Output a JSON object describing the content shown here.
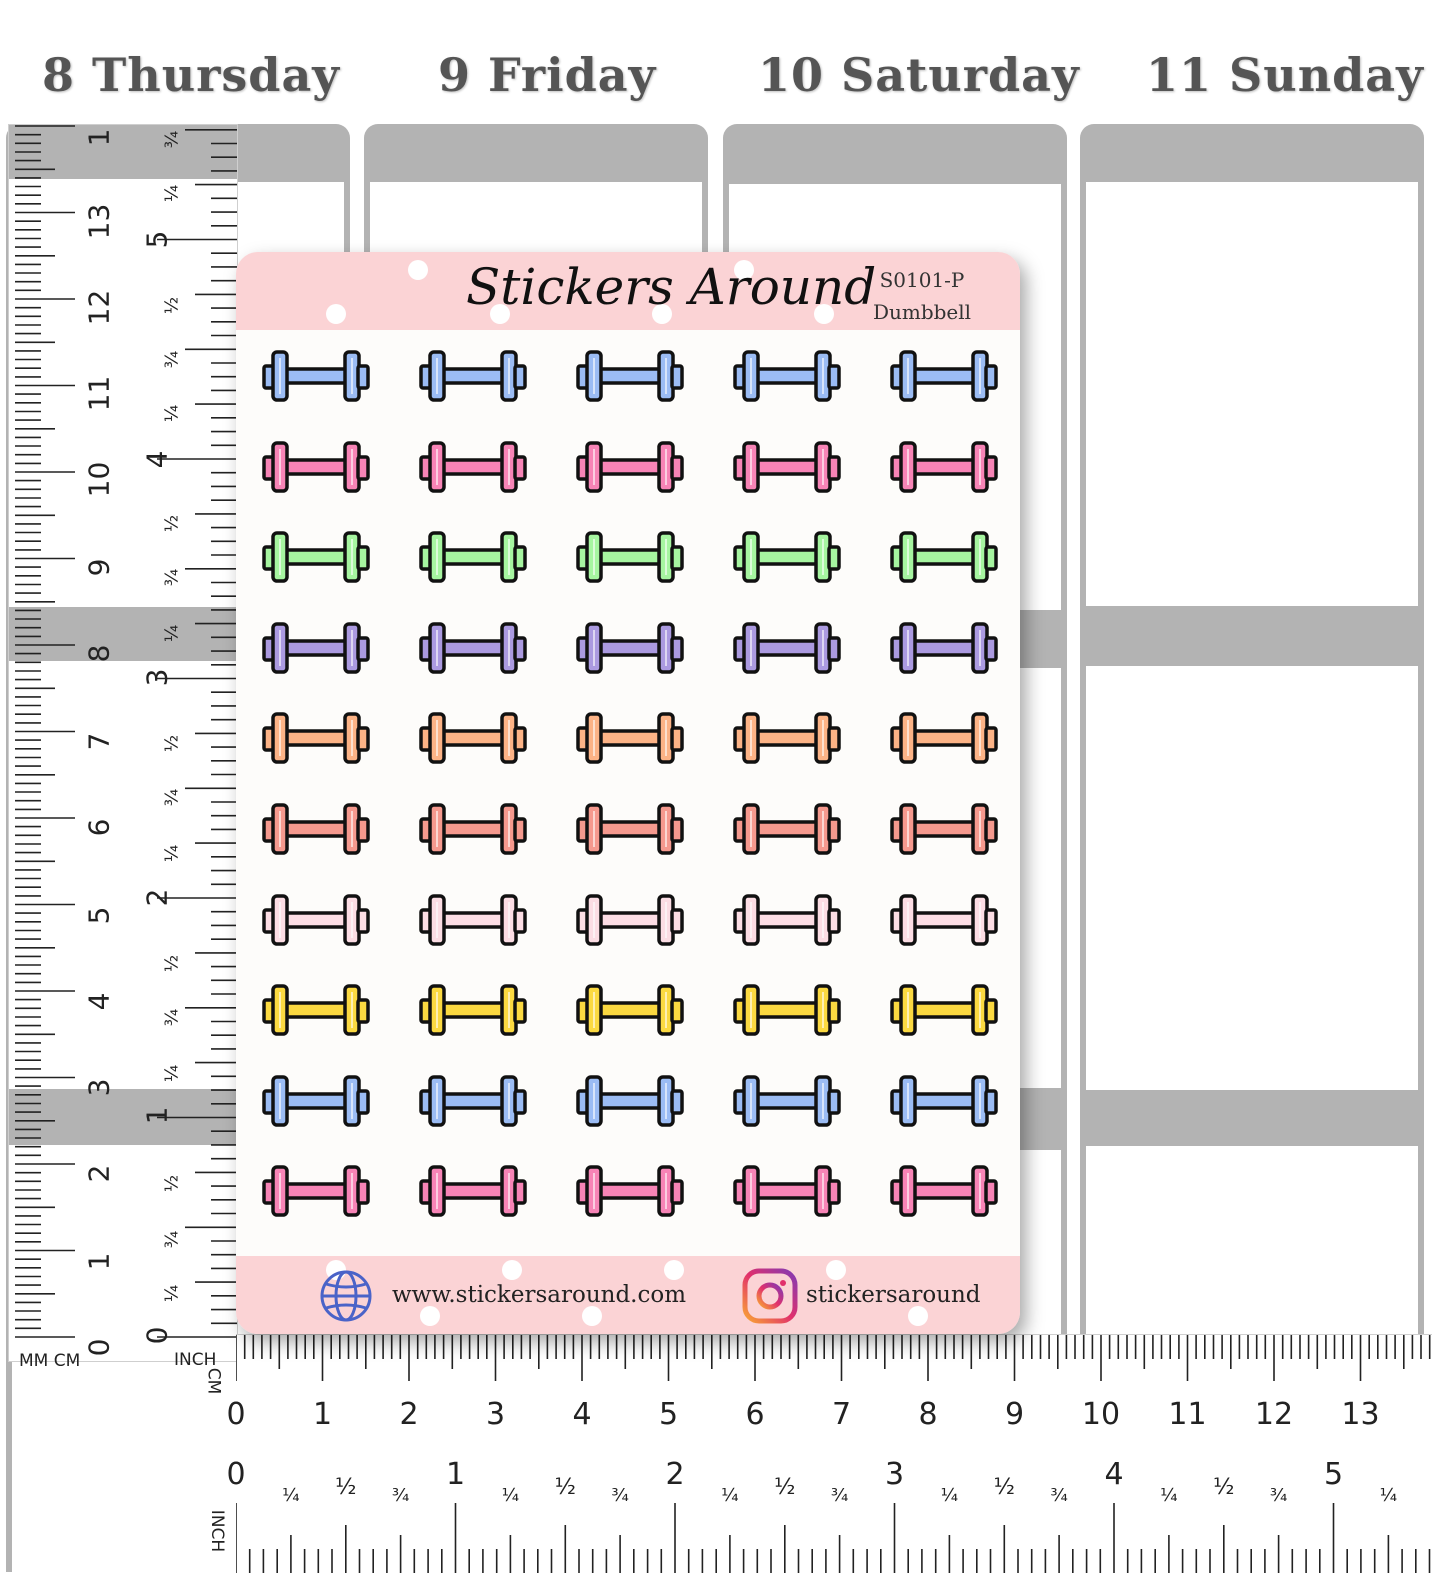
{
  "days": [
    {
      "label": "8 Thursday"
    },
    {
      "label": "9 Friday"
    },
    {
      "label": "10 Saturday"
    },
    {
      "label": "11 Sunday"
    }
  ],
  "sheet": {
    "brand": "Stickers Around",
    "code": "S0101-P",
    "name": "Dumbbell",
    "website": "www.stickersaround.com",
    "instagram": "stickersaround",
    "rows": 10,
    "columns": 5,
    "row_colors": [
      "#9bbcf4",
      "#f784b6",
      "#a6f5a0",
      "#ab9ae0",
      "#fcb386",
      "#f5998e",
      "#fcdde4",
      "#fbd941",
      "#9bbcf4",
      "#f784b6"
    ]
  },
  "ruler_vertical": {
    "units_label": "MM CM",
    "inch_label": "INCH",
    "cm_numbers": [
      "1",
      "13",
      "12",
      "11",
      "10",
      "9",
      "8",
      "7",
      "6",
      "5",
      "4",
      "3",
      "2",
      "1",
      "0"
    ],
    "inch_numbers": [
      "5",
      "4",
      "3",
      "2",
      "1",
      "0"
    ],
    "fractions": [
      "¼",
      "½",
      "¾"
    ]
  },
  "ruler_horizontal": {
    "cm_label": "CM",
    "inch_label": "INCH",
    "cm_numbers": [
      "0",
      "1",
      "2",
      "3",
      "4",
      "5",
      "6",
      "7",
      "8",
      "9",
      "10",
      "11",
      "12",
      "13"
    ],
    "inch_numbers": [
      "0",
      "1",
      "2",
      "3",
      "4",
      "5"
    ],
    "fractions": [
      "¼",
      "½",
      "¾"
    ]
  }
}
